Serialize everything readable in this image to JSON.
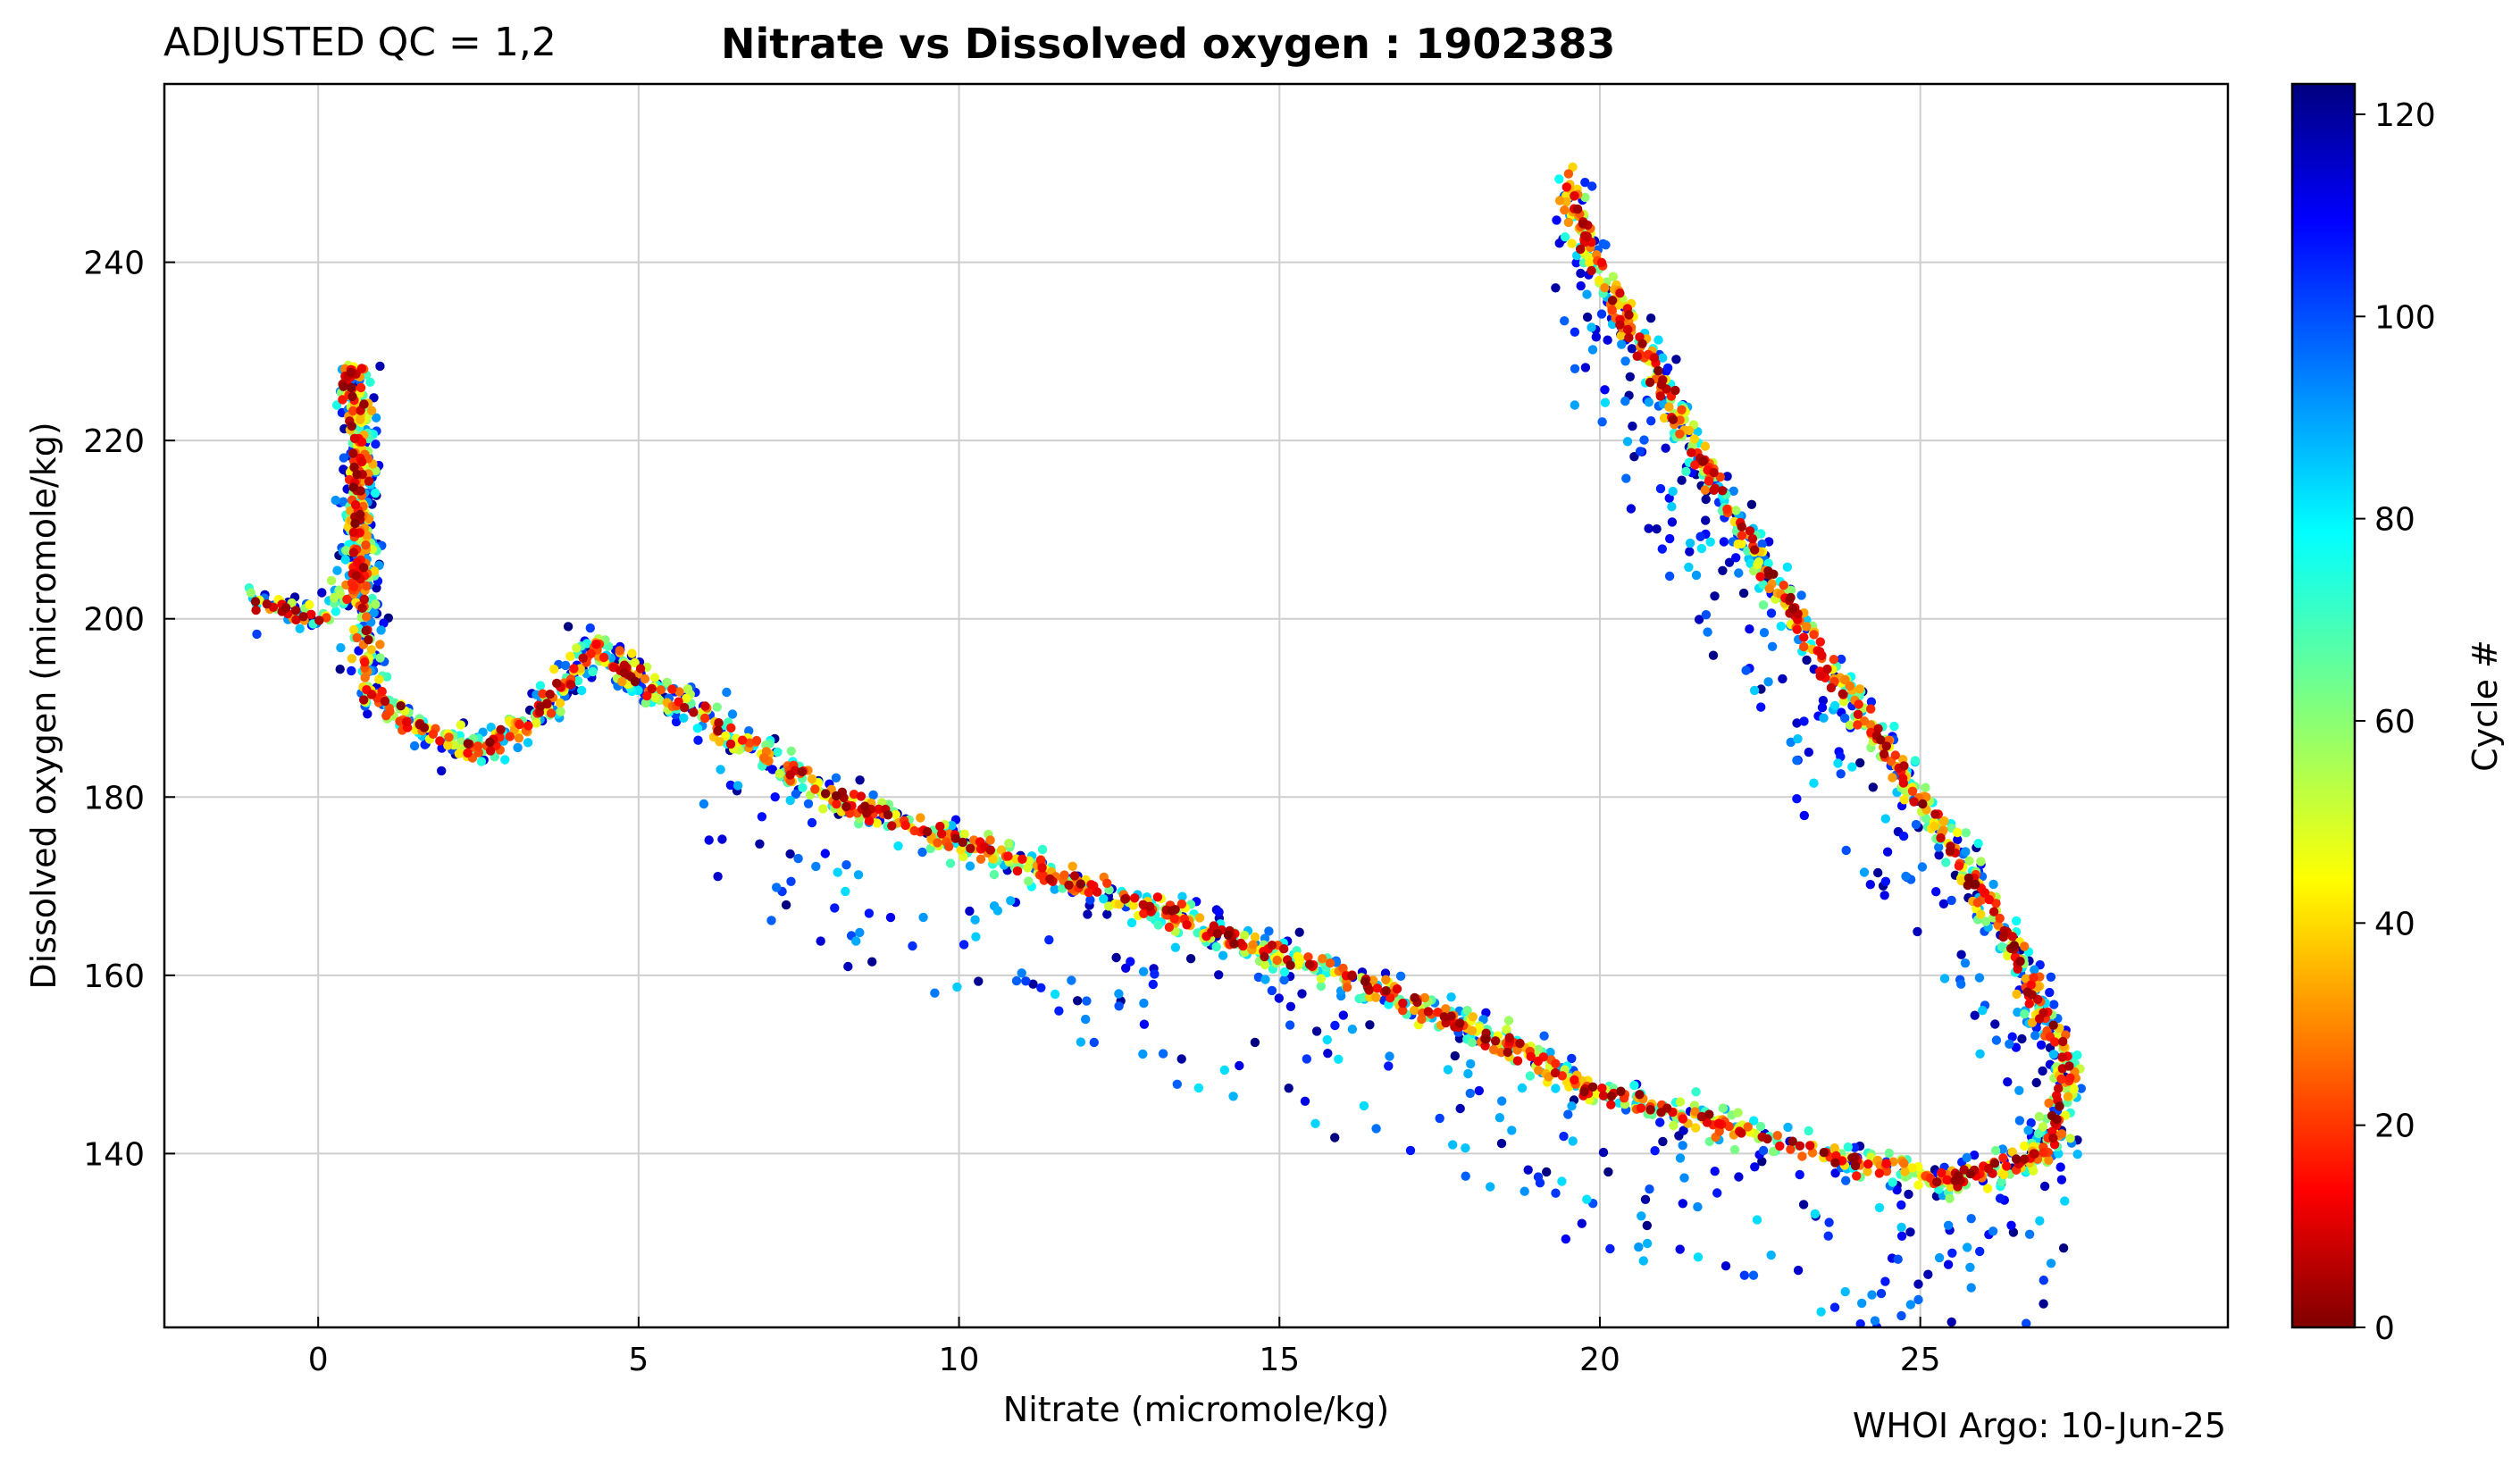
{
  "header": {
    "qc_label": "ADJUSTED QC = 1,2",
    "title": "Nitrate vs Dissolved oxygen : 1902383"
  },
  "footer": {
    "credit": "WHOI Argo: 10-Jun-25"
  },
  "chart_data": {
    "type": "scatter",
    "title": "Nitrate vs Dissolved oxygen : 1902383",
    "xlabel": "Nitrate  (micromole/kg)",
    "ylabel": "Dissolved oxygen  (micromole/kg)",
    "xlim": [
      -2.4,
      29.8
    ],
    "ylim": [
      120.5,
      260.0
    ],
    "xticks": [
      0,
      5,
      10,
      15,
      20,
      25
    ],
    "yticks": [
      140,
      160,
      180,
      200,
      220,
      240
    ],
    "grid": true,
    "colorbar": {
      "label": "Cycle #",
      "colormap": "jet",
      "range": [
        0,
        123
      ],
      "ticks": [
        0,
        20,
        40,
        60,
        80,
        100,
        120
      ]
    },
    "curve_points": [
      {
        "x": -1.0,
        "y": 202
      },
      {
        "x": 0.0,
        "y": 200
      },
      {
        "x": 0.6,
        "y": 204
      },
      {
        "x": 0.7,
        "y": 222
      },
      {
        "x": 0.5,
        "y": 228
      },
      {
        "x": 0.8,
        "y": 192
      },
      {
        "x": 1.5,
        "y": 188
      },
      {
        "x": 2.5,
        "y": 185
      },
      {
        "x": 3.5,
        "y": 190
      },
      {
        "x": 4.3,
        "y": 197
      },
      {
        "x": 5.0,
        "y": 193
      },
      {
        "x": 6.0,
        "y": 189
      },
      {
        "x": 8.0,
        "y": 180
      },
      {
        "x": 10.0,
        "y": 175
      },
      {
        "x": 12.0,
        "y": 170
      },
      {
        "x": 14.0,
        "y": 165
      },
      {
        "x": 16.0,
        "y": 160
      },
      {
        "x": 18.0,
        "y": 154
      },
      {
        "x": 20.0,
        "y": 147
      },
      {
        "x": 22.0,
        "y": 143
      },
      {
        "x": 24.0,
        "y": 139
      },
      {
        "x": 25.5,
        "y": 137
      },
      {
        "x": 27.0,
        "y": 140
      },
      {
        "x": 27.3,
        "y": 150
      },
      {
        "x": 26.3,
        "y": 165
      },
      {
        "x": 25.0,
        "y": 180
      },
      {
        "x": 23.5,
        "y": 195
      },
      {
        "x": 21.8,
        "y": 215
      },
      {
        "x": 20.3,
        "y": 235
      },
      {
        "x": 19.8,
        "y": 242
      },
      {
        "x": 19.5,
        "y": 250
      }
    ],
    "point_count": 3200
  }
}
